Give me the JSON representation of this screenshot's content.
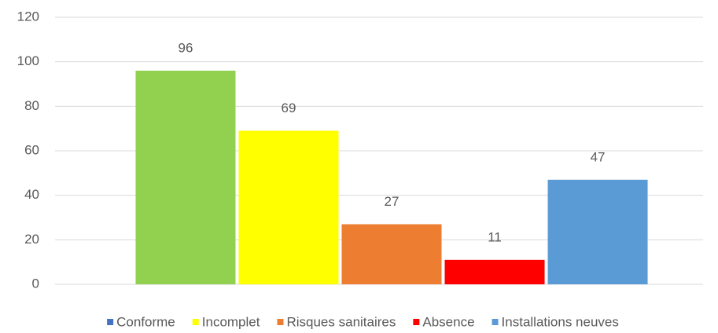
{
  "chart_data": {
    "type": "bar",
    "categories": [
      null
    ],
    "series": [
      {
        "name": "Conforme",
        "color": "#92d050",
        "legend_color": "#4472c4",
        "values": [
          96
        ]
      },
      {
        "name": "Incomplet",
        "color": "#ffff00",
        "legend_color": "#ffff00",
        "values": [
          69
        ]
      },
      {
        "name": "Risques sanitaires",
        "color": "#ed7d31",
        "legend_color": "#ed7d31",
        "values": [
          27
        ]
      },
      {
        "name": "Absence",
        "color": "#ff0000",
        "legend_color": "#ff0000",
        "values": [
          11
        ]
      },
      {
        "name": "Installations neuves",
        "color": "#5b9bd5",
        "legend_color": "#5b9bd5",
        "values": [
          47
        ]
      }
    ],
    "ylim": [
      0,
      120
    ],
    "yticks": [
      0,
      20,
      40,
      60,
      80,
      100,
      120
    ],
    "grid": true,
    "data_labels": true,
    "legend": "bottom"
  }
}
